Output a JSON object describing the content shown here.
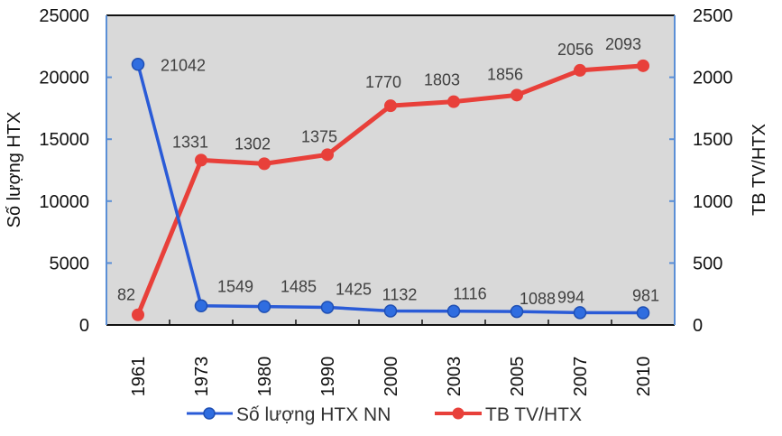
{
  "chart_data": {
    "type": "line",
    "title": "",
    "categories": [
      "1961",
      "1973",
      "1980",
      "1990",
      "2000",
      "2003",
      "2005",
      "2007",
      "2010"
    ],
    "series": [
      {
        "name": "Số lượng HTX NN",
        "axis": "left",
        "color": "#2a5bd7",
        "values": [
          21042,
          1549,
          1485,
          1425,
          1132,
          1116,
          1088,
          994,
          981
        ]
      },
      {
        "name": "TB TV/HTX",
        "axis": "right",
        "color": "#e8403a",
        "values": [
          82,
          1331,
          1302,
          1375,
          1770,
          1803,
          1856,
          2056,
          2093
        ]
      }
    ],
    "ylabel": "Số lượng HTX",
    "ylabel_right": "TB TV/HTX",
    "xlabel": "",
    "ylim": [
      0,
      25000
    ],
    "ylim_right": [
      0,
      2500
    ],
    "yticks": [
      0,
      5000,
      10000,
      15000,
      20000,
      25000
    ],
    "yticks_right": [
      0,
      500,
      1000,
      1500,
      2000,
      2500
    ],
    "grid": false,
    "legend_position": "bottom",
    "plot_background": "#d9d9d9"
  },
  "axes": {
    "left_title": "Số lượng HTX",
    "right_title": "TB TV/HTX"
  },
  "legend": {
    "items": [
      {
        "label": "Số lượng HTX NN",
        "color": "#2a5bd7"
      },
      {
        "label": "TB TV/HTX",
        "color": "#e8403a"
      }
    ]
  }
}
